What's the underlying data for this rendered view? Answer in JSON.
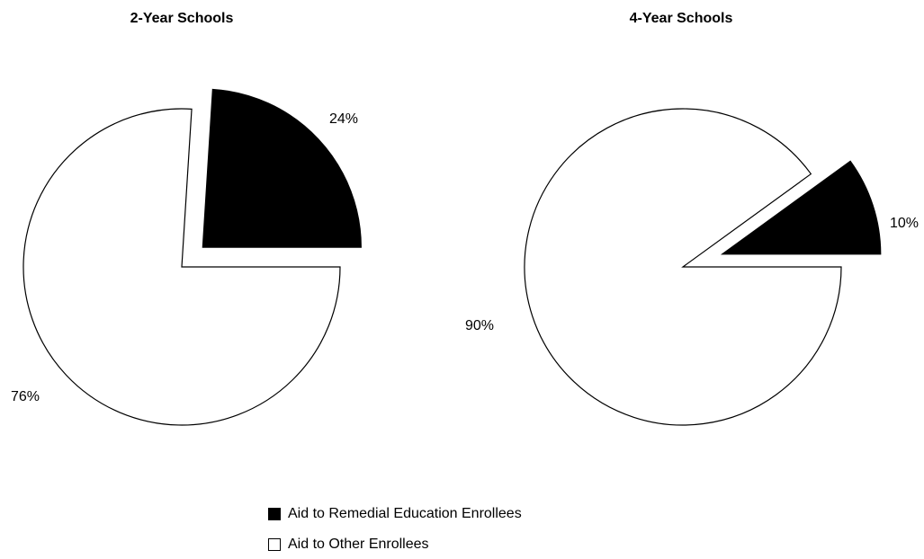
{
  "chart_data": [
    {
      "type": "pie",
      "title": "2-Year Schools",
      "slices": [
        {
          "label": "Aid to Remedial Education Enrollees",
          "value": 24,
          "display": "24%",
          "color": "#000000",
          "exploded": true
        },
        {
          "label": "Aid to Other Enrollees",
          "value": 76,
          "display": "76%",
          "color": "#ffffff",
          "exploded": false
        }
      ]
    },
    {
      "type": "pie",
      "title": "4-Year Schools",
      "slices": [
        {
          "label": "Aid to Remedial Education Enrollees",
          "value": 10,
          "display": "10%",
          "color": "#000000",
          "exploded": true
        },
        {
          "label": "Aid to Other Enrollees",
          "value": 90,
          "display": "90%",
          "color": "#ffffff",
          "exploded": false
        }
      ]
    }
  ],
  "legend": [
    {
      "label": "Aid to Remedial Education Enrollees",
      "color": "#000000"
    },
    {
      "label": "Aid to Other Enrollees",
      "color": "#ffffff"
    }
  ]
}
